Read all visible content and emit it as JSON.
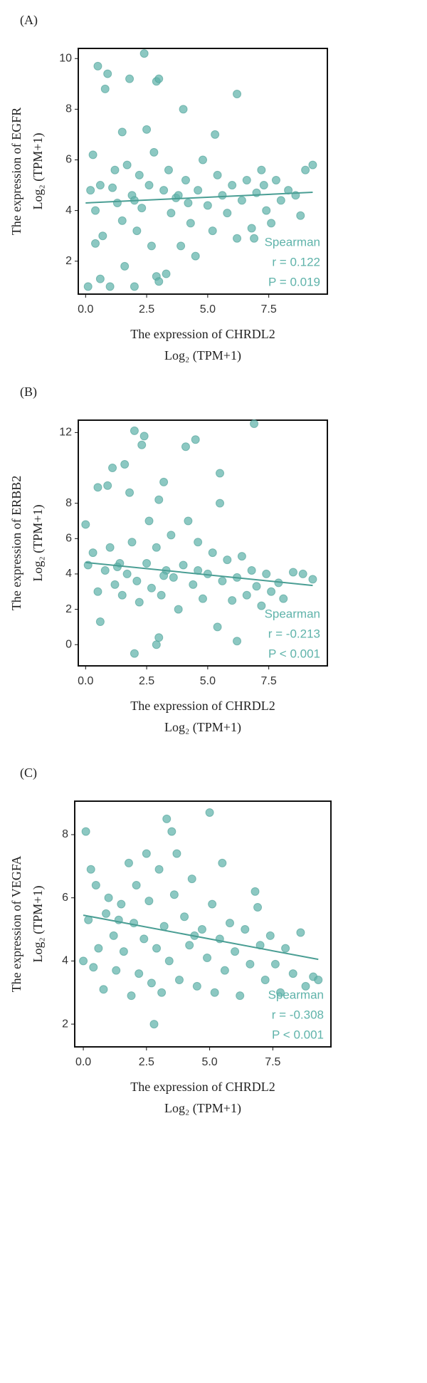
{
  "chart_data": [
    {
      "panel": "(A)",
      "type": "scatter",
      "color": "#5fb3aa",
      "line_color": "#4a9e94",
      "xlabel": [
        "The expression of CHRDL2",
        "Log₂ (TPM+1)"
      ],
      "ylabel": [
        "The expression of EGFR",
        "Log₂ (TPM+1)"
      ],
      "annotations": [
        "Spearman",
        "r = 0.122",
        "P = 0.019"
      ],
      "xlim": [
        -0.3,
        9.9
      ],
      "ylim": [
        0.7,
        10.4
      ],
      "xticks": [
        {
          "value": 0,
          "label": "0.0"
        },
        2.5,
        {
          "value": 5,
          "label": "5.0"
        },
        7.5
      ],
      "yticks": [
        2,
        4,
        6,
        8,
        10
      ],
      "x": [
        0.1,
        0.5,
        0.8,
        0.9,
        1.5,
        1.8,
        2.4,
        2.5,
        2.9,
        3.0,
        4.0,
        5.3,
        6.2,
        0.3,
        0.2,
        0.4,
        0.6,
        0.7,
        0.4,
        0.6,
        1.0,
        1.2,
        1.3,
        1.5,
        1.6,
        1.7,
        1.9,
        2.0,
        2.1,
        2.2,
        2.3,
        2.6,
        2.7,
        2.8,
        2.9,
        3.0,
        3.2,
        3.3,
        3.4,
        3.5,
        3.7,
        3.9,
        4.1,
        4.3,
        4.5,
        4.6,
        4.8,
        5.0,
        5.2,
        5.4,
        5.6,
        5.8,
        6.0,
        6.2,
        6.4,
        6.6,
        6.8,
        7.0,
        7.2,
        7.4,
        7.6,
        7.8,
        8.0,
        8.3,
        8.6,
        8.8,
        9.0,
        9.3,
        2.0,
        3.8,
        4.2,
        1.1,
        6.9,
        7.3
      ],
      "values": [
        1.0,
        9.7,
        8.8,
        9.4,
        7.1,
        9.2,
        10.2,
        7.2,
        9.1,
        9.2,
        8.0,
        7.0,
        8.6,
        6.2,
        4.8,
        4.0,
        5.0,
        3.0,
        2.7,
        1.3,
        1.0,
        5.6,
        4.3,
        3.6,
        1.8,
        5.8,
        4.6,
        1.0,
        3.2,
        5.4,
        4.1,
        5.0,
        2.6,
        6.3,
        1.4,
        1.2,
        4.8,
        1.5,
        5.6,
        3.9,
        4.5,
        2.6,
        5.2,
        3.5,
        2.2,
        4.8,
        6.0,
        4.2,
        3.2,
        5.4,
        4.6,
        3.9,
        5.0,
        2.9,
        4.4,
        5.2,
        3.3,
        4.7,
        5.6,
        4.0,
        3.5,
        5.2,
        4.4,
        4.8,
        4.6,
        3.8,
        5.6,
        5.8,
        4.4,
        4.6,
        4.3,
        4.9,
        2.9,
        5.0
      ],
      "fit": {
        "x": [
          0,
          9.3
        ],
        "y": [
          4.3,
          4.72
        ]
      }
    },
    {
      "panel": "(B)",
      "type": "scatter",
      "color": "#5fb3aa",
      "line_color": "#4a9e94",
      "xlabel": [
        "The expression of CHRDL2",
        "Log₂ (TPM+1)"
      ],
      "ylabel": [
        "The expression of ERBB2",
        "Log₂ (TPM+1)"
      ],
      "annotations": [
        "Spearman",
        "r = -0.213",
        "P < 0.001"
      ],
      "xlim": [
        -0.3,
        9.9
      ],
      "ylim": [
        -1.2,
        12.7
      ],
      "xticks": [
        {
          "value": 0,
          "label": "0.0"
        },
        2.5,
        {
          "value": 5,
          "label": "5.0"
        },
        7.5
      ],
      "yticks": [
        0,
        2,
        4,
        6,
        8,
        12
      ],
      "x": [
        0.0,
        0.5,
        0.9,
        1.1,
        1.6,
        2.0,
        2.4,
        2.3,
        1.8,
        3.0,
        3.2,
        4.1,
        4.5,
        5.5,
        6.9,
        5.5,
        2.0,
        2.9,
        3.0,
        6.2,
        0.6,
        0.1,
        0.3,
        0.5,
        0.8,
        1.0,
        1.2,
        1.4,
        1.5,
        1.7,
        1.9,
        2.1,
        2.2,
        2.5,
        2.6,
        2.7,
        2.9,
        3.1,
        3.3,
        3.5,
        3.6,
        3.8,
        4.0,
        4.2,
        4.4,
        4.6,
        4.8,
        5.0,
        5.2,
        5.4,
        5.6,
        5.8,
        6.0,
        6.2,
        6.4,
        6.6,
        6.8,
        7.0,
        7.2,
        7.4,
        7.6,
        7.9,
        8.1,
        8.5,
        8.9,
        9.3,
        4.6,
        3.2,
        1.3
      ],
      "values": [
        6.8,
        8.9,
        9.0,
        10.0,
        10.2,
        12.1,
        11.8,
        11.3,
        8.6,
        8.2,
        9.2,
        11.2,
        11.6,
        9.7,
        12.5,
        8.0,
        -0.5,
        0.0,
        0.4,
        0.2,
        1.3,
        4.5,
        5.2,
        3.0,
        4.2,
        5.5,
        3.4,
        4.6,
        2.8,
        4.0,
        5.8,
        3.6,
        2.4,
        4.6,
        7.0,
        3.2,
        5.5,
        2.8,
        4.2,
        6.2,
        3.8,
        2.0,
        4.5,
        7.0,
        3.4,
        5.8,
        2.6,
        4.0,
        5.2,
        1.0,
        3.6,
        4.8,
        2.5,
        3.8,
        5.0,
        2.8,
        4.2,
        3.3,
        2.2,
        4.0,
        3.0,
        3.5,
        2.6,
        4.1,
        4.0,
        3.7,
        4.2,
        3.9,
        4.4
      ],
      "fit": {
        "x": [
          0,
          9.3
        ],
        "y": [
          4.65,
          3.35
        ]
      }
    },
    {
      "panel": "(C)",
      "type": "scatter",
      "color": "#5fb3aa",
      "line_color": "#4a9e94",
      "xlabel": [
        "The expression of CHRDL2",
        "Log₂ (TPM+1)"
      ],
      "ylabel": [
        "The expression of VEGFA",
        "Log₂ (TPM+1)"
      ],
      "annotations": [
        "Spearman",
        "r = -0.308",
        "P < 0.001"
      ],
      "xlim": [
        -0.34,
        9.8
      ],
      "ylim": [
        1.28,
        9.06
      ],
      "xticks": [
        {
          "value": 0,
          "label": "0.0"
        },
        2.5,
        {
          "value": 5,
          "label": "5.0"
        },
        7.5
      ],
      "yticks": [
        2,
        4,
        6,
        8
      ],
      "x": [
        0.1,
        0.3,
        2.5,
        3.3,
        3.5,
        3.7,
        5.0,
        5.5,
        2.8,
        0.0,
        0.2,
        0.4,
        0.5,
        0.6,
        0.8,
        0.9,
        1.0,
        1.2,
        1.3,
        1.5,
        1.6,
        1.8,
        1.9,
        2.0,
        2.1,
        2.2,
        2.4,
        2.6,
        2.7,
        2.9,
        3.0,
        3.1,
        3.2,
        3.4,
        3.6,
        3.8,
        4.0,
        4.2,
        4.3,
        4.5,
        4.7,
        4.9,
        5.1,
        5.2,
        5.4,
        5.6,
        5.8,
        6.0,
        6.2,
        6.4,
        6.6,
        6.8,
        7.0,
        7.2,
        7.4,
        7.6,
        7.8,
        8.0,
        8.3,
        8.6,
        8.8,
        9.1,
        9.3,
        1.4,
        4.4,
        6.9
      ],
      "values": [
        8.1,
        6.9,
        7.4,
        8.5,
        8.1,
        7.4,
        8.7,
        7.1,
        2.0,
        4.0,
        5.3,
        3.8,
        6.4,
        4.4,
        3.1,
        5.5,
        6.0,
        4.8,
        3.7,
        5.8,
        4.3,
        7.1,
        2.9,
        5.2,
        6.4,
        3.6,
        4.7,
        5.9,
        3.3,
        4.4,
        6.9,
        3.0,
        5.1,
        4.0,
        6.1,
        3.4,
        5.4,
        4.5,
        6.6,
        3.2,
        5.0,
        4.1,
        5.8,
        3.0,
        4.7,
        3.7,
        5.2,
        4.3,
        2.9,
        5.0,
        3.9,
        6.2,
        4.5,
        3.4,
        4.8,
        3.9,
        3.0,
        4.4,
        3.6,
        4.9,
        3.2,
        3.5,
        3.4,
        5.3,
        4.8,
        5.7
      ],
      "fit": {
        "x": [
          0,
          9.3
        ],
        "y": [
          5.45,
          4.05
        ]
      }
    }
  ]
}
